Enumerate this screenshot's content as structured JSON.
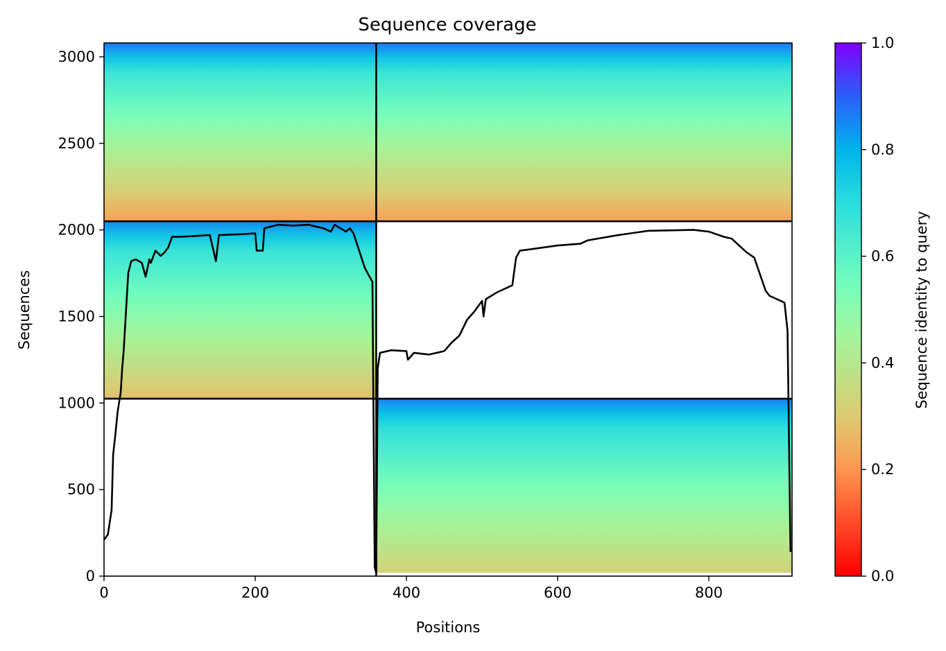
{
  "chart_data": {
    "type": "heatmap",
    "title": "Sequence coverage",
    "xlabel": "Positions",
    "ylabel": "Sequences",
    "xlim": [
      0,
      910
    ],
    "ylim": [
      0,
      3080
    ],
    "xticks": [
      0,
      200,
      400,
      600,
      800
    ],
    "yticks": [
      0,
      500,
      1000,
      1500,
      2000,
      2500,
      3000
    ],
    "colorbar": {
      "label": "Sequence identity to query",
      "colormap": "rainbow_r",
      "range": [
        0,
        1
      ],
      "ticks": [
        "0.0",
        "0.2",
        "0.4",
        "0.6",
        "0.8",
        "1.0"
      ],
      "stops": [
        {
          "v": 0.0,
          "color": "#ff0000"
        },
        {
          "v": 0.2,
          "color": "#ff9650"
        },
        {
          "v": 0.3,
          "color": "#dccb72"
        },
        {
          "v": 0.45,
          "color": "#a2f59b"
        },
        {
          "v": 0.55,
          "color": "#74fdbd"
        },
        {
          "v": 0.7,
          "color": "#2adddd"
        },
        {
          "v": 0.8,
          "color": "#00b4eb"
        },
        {
          "v": 0.9,
          "color": "#2a5ffa"
        },
        {
          "v": 1.0,
          "color": "#8000ff"
        }
      ]
    },
    "blocks": [
      {
        "x": [
          0,
          360
        ],
        "y": [
          2050,
          3080
        ],
        "identity": {
          "bottom": 0.22,
          "top": 0.87
        }
      },
      {
        "x": [
          360,
          910
        ],
        "y": [
          2050,
          3080
        ],
        "identity": {
          "bottom": 0.22,
          "top": 0.87
        }
      },
      {
        "x": [
          0,
          360
        ],
        "y": [
          1025,
          2050
        ],
        "identity": {
          "bottom": 0.28,
          "top": 0.85
        }
      },
      {
        "x": [
          360,
          910
        ],
        "y": [
          20,
          1025
        ],
        "identity": {
          "bottom": 0.32,
          "top": 0.86
        }
      }
    ],
    "dividers": {
      "vertical_x": 360,
      "horizontal_y": [
        1025,
        2050
      ]
    },
    "coverage_line": {
      "x": [
        0,
        5,
        10,
        12,
        15,
        18,
        22,
        24,
        26,
        28,
        32,
        36,
        42,
        50,
        55,
        60,
        62,
        68,
        75,
        80,
        85,
        90,
        100,
        120,
        140,
        148,
        152,
        180,
        200,
        202,
        210,
        212,
        230,
        250,
        270,
        290,
        300,
        305,
        320,
        325,
        330,
        345,
        350,
        355,
        358,
        360,
        362,
        365,
        380,
        400,
        402,
        410,
        430,
        450,
        460,
        470,
        480,
        490,
        500,
        502,
        505,
        520,
        540,
        545,
        550,
        600,
        630,
        640,
        680,
        720,
        780,
        800,
        820,
        830,
        840,
        850,
        860,
        875,
        880,
        900,
        904,
        906,
        908
      ],
      "y": [
        210,
        240,
        380,
        700,
        820,
        950,
        1060,
        1200,
        1300,
        1450,
        1750,
        1820,
        1830,
        1810,
        1730,
        1830,
        1810,
        1880,
        1850,
        1870,
        1900,
        1960,
        1960,
        1965,
        1970,
        1820,
        1970,
        1975,
        1980,
        1880,
        1880,
        2010,
        2030,
        2025,
        2030,
        2010,
        1990,
        2030,
        1990,
        2010,
        1980,
        1780,
        1740,
        1700,
        50,
        20,
        1200,
        1290,
        1305,
        1300,
        1250,
        1290,
        1280,
        1300,
        1350,
        1390,
        1480,
        1530,
        1590,
        1500,
        1600,
        1640,
        1680,
        1840,
        1880,
        1910,
        1920,
        1940,
        1970,
        1995,
        2000,
        1990,
        1960,
        1950,
        1910,
        1870,
        1840,
        1650,
        1620,
        1580,
        1420,
        800,
        140
      ]
    }
  }
}
